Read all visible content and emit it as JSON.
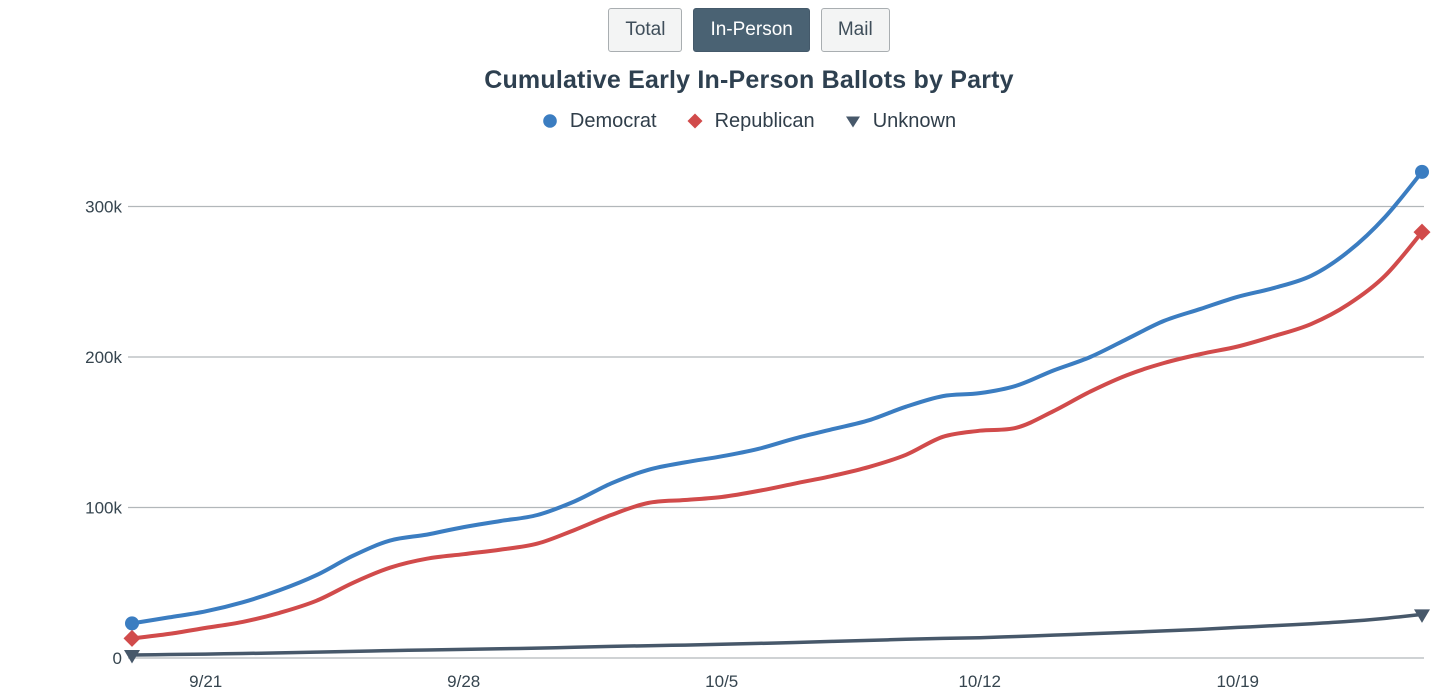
{
  "tabs": {
    "items": [
      {
        "label": "Total",
        "active": false
      },
      {
        "label": "In-Person",
        "active": true
      },
      {
        "label": "Mail",
        "active": false
      }
    ]
  },
  "colors": {
    "democrat": "#3b7dc1",
    "republican": "#d14b4b",
    "unknown": "#47586a",
    "grid": "#b2b7ba",
    "axis_text": "#36454f",
    "title_text": "#2e4050",
    "tab_active_bg": "#4a6273",
    "tab_inactive_bg": "#f3f4f4"
  },
  "chart_data": {
    "type": "line",
    "title": "Cumulative Early In-Person Ballots by Party",
    "xlabel": "",
    "ylabel": "",
    "grid": true,
    "legend_position": "top",
    "ylim": [
      0,
      337000
    ],
    "x_dates": [
      "9/19",
      "9/20",
      "9/21",
      "9/22",
      "9/23",
      "9/24",
      "9/25",
      "9/26",
      "9/27",
      "9/28",
      "9/29",
      "9/30",
      "10/1",
      "10/2",
      "10/3",
      "10/4",
      "10/5",
      "10/6",
      "10/7",
      "10/8",
      "10/9",
      "10/10",
      "10/11",
      "10/12",
      "10/13",
      "10/14",
      "10/15",
      "10/16",
      "10/17",
      "10/18",
      "10/19",
      "10/20",
      "10/21",
      "10/22",
      "10/23",
      "10/24"
    ],
    "x_ticks": [
      {
        "index": 2,
        "label": "9/21"
      },
      {
        "index": 9,
        "label": "9/28"
      },
      {
        "index": 16,
        "label": "10/5"
      },
      {
        "index": 23,
        "label": "10/12"
      },
      {
        "index": 30,
        "label": "10/19"
      }
    ],
    "y_ticks": [
      {
        "value": 0,
        "label": "0"
      },
      {
        "value": 100000,
        "label": "100k"
      },
      {
        "value": 200000,
        "label": "200k"
      },
      {
        "value": 300000,
        "label": "300k"
      }
    ],
    "series": [
      {
        "name": "Democrat",
        "color": "#3b7dc1",
        "marker": "circle",
        "values": [
          23000,
          27000,
          31000,
          37000,
          45000,
          55000,
          68000,
          78000,
          82000,
          87000,
          91000,
          95000,
          104000,
          116000,
          125000,
          130000,
          134000,
          139000,
          146000,
          152000,
          158000,
          167000,
          174000,
          176000,
          181000,
          191000,
          200000,
          212000,
          224000,
          232000,
          240000,
          246000,
          254000,
          270000,
          293000,
          323000
        ]
      },
      {
        "name": "Republican",
        "color": "#d14b4b",
        "marker": "diamond",
        "values": [
          13000,
          16000,
          20000,
          24000,
          30000,
          38000,
          50000,
          60000,
          66000,
          69000,
          72000,
          76000,
          85000,
          95000,
          103000,
          105000,
          107000,
          111000,
          116000,
          121000,
          127000,
          135000,
          147000,
          151000,
          153000,
          164000,
          177000,
          188000,
          196000,
          202000,
          207000,
          214000,
          222000,
          235000,
          254000,
          283000
        ]
      },
      {
        "name": "Unknown",
        "color": "#47586a",
        "marker": "triangle-down",
        "values": [
          2000,
          2300,
          2600,
          3000,
          3400,
          3900,
          4400,
          4900,
          5300,
          5700,
          6100,
          6600,
          7100,
          7700,
          8200,
          8600,
          9100,
          9700,
          10300,
          11000,
          11700,
          12400,
          13000,
          13500,
          14300,
          15200,
          16100,
          17000,
          18000,
          19000,
          20300,
          21500,
          22800,
          24300,
          26300,
          29000
        ]
      }
    ]
  }
}
